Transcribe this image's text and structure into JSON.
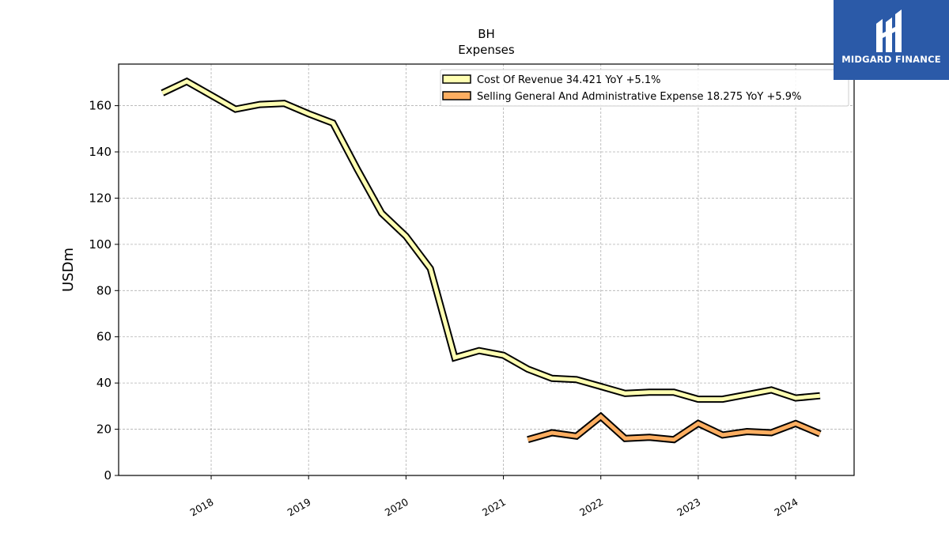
{
  "logo": {
    "text": "MIDGARD FINANCE",
    "icon": "mf-monogram-icon",
    "bg_color": "#2b5aa8"
  },
  "chart_data": {
    "type": "line",
    "title": "BH",
    "subtitle": "Expenses",
    "ylabel": "USDm",
    "xlabel": "",
    "ylim": [
      0,
      178
    ],
    "yticks": [
      0,
      20,
      40,
      60,
      80,
      100,
      120,
      140,
      160
    ],
    "xlim": [
      2017.05,
      2024.6
    ],
    "xticks": [
      {
        "value": 2018,
        "label": "2018"
      },
      {
        "value": 2019,
        "label": "2019"
      },
      {
        "value": 2020,
        "label": "2020"
      },
      {
        "value": 2021,
        "label": "2021"
      },
      {
        "value": 2022,
        "label": "2022"
      },
      {
        "value": 2023,
        "label": "2023"
      },
      {
        "value": 2024,
        "label": "2024"
      }
    ],
    "grid": true,
    "legend_position": "top-right",
    "series": [
      {
        "name": "Cost Of Revenue",
        "legend_label": "Cost Of Revenue  34.421 YoY +5.1%",
        "color": "#ffffb2",
        "x": [
          2017.5,
          2017.75,
          2018.0,
          2018.25,
          2018.5,
          2018.75,
          2019.0,
          2019.25,
          2019.5,
          2019.75,
          2020.0,
          2020.25,
          2020.5,
          2020.75,
          2021.0,
          2021.25,
          2021.5,
          2021.75,
          2022.0,
          2022.25,
          2022.5,
          2022.75,
          2023.0,
          2023.25,
          2023.5,
          2023.75,
          2024.0,
          2024.25
        ],
        "values": [
          165.5,
          170.5,
          164.5,
          158.5,
          160.5,
          161.0,
          156.5,
          152.5,
          132.5,
          113.5,
          103.5,
          89.5,
          51.0,
          54.0,
          52.0,
          46.0,
          42.0,
          41.5,
          38.5,
          35.5,
          36.0,
          36.0,
          33.0,
          33.0,
          35.0,
          37.0,
          33.5,
          34.5
        ]
      },
      {
        "name": "Selling General And Administrative Expense",
        "legend_label": "Selling General And Administrative Expense  18.275 YoY +5.9%",
        "color": "#fdae61",
        "x": [
          2021.25,
          2021.5,
          2021.75,
          2022.0,
          2022.25,
          2022.5,
          2022.75,
          2023.0,
          2023.25,
          2023.5,
          2023.75,
          2024.0,
          2024.25
        ],
        "values": [
          15.5,
          18.5,
          17.0,
          25.5,
          16.0,
          16.5,
          15.5,
          22.5,
          17.5,
          19.0,
          18.5,
          22.5,
          18.0
        ]
      }
    ]
  }
}
